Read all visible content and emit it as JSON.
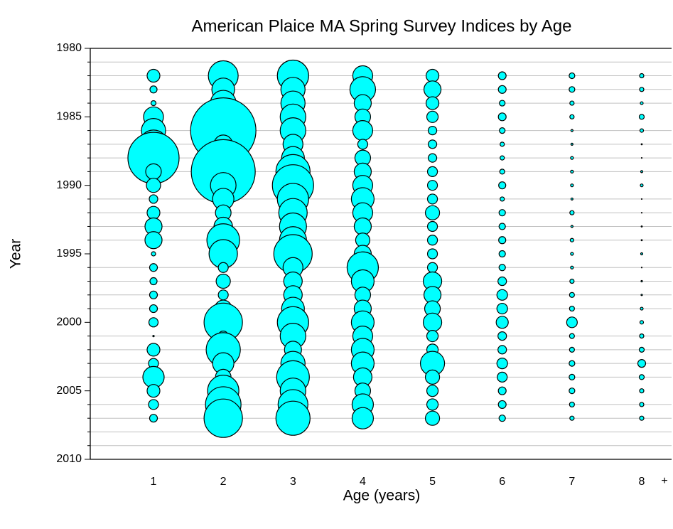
{
  "chart_data": {
    "type": "bubble",
    "title": "American Plaice MA Spring Survey Indices by Age",
    "xlabel": "Age (years)",
    "ylabel": "Year",
    "annotation": "+",
    "categories": [
      "1",
      "2",
      "3",
      "4",
      "5",
      "6",
      "7",
      "8"
    ],
    "years": [
      1982,
      1983,
      1984,
      1985,
      1986,
      1987,
      1988,
      1989,
      1990,
      1991,
      1992,
      1993,
      1994,
      1995,
      1996,
      1997,
      1998,
      1999,
      2000,
      2001,
      2002,
      2003,
      2004,
      2005,
      2006,
      2007
    ],
    "ylim": [
      1980,
      2010
    ],
    "y_inverted": true,
    "yticks": [
      1980,
      1985,
      1990,
      1995,
      2000,
      2005,
      2010
    ],
    "minor_yticks": [
      1981,
      1982,
      1983,
      1984,
      1986,
      1987,
      1988,
      1989,
      1991,
      1992,
      1993,
      1994,
      1996,
      1997,
      1998,
      1999,
      2001,
      2002,
      2003,
      2004,
      2006,
      2007,
      2008,
      2009
    ],
    "grid": true,
    "color": "#00ffff",
    "series": [
      {
        "name": "1",
        "values": [
          9,
          5,
          3.5,
          14,
          17,
          20,
          36,
          11,
          10,
          6,
          9,
          12,
          12,
          3,
          5.5,
          5,
          5.5,
          5.5,
          6.5,
          1,
          9,
          7,
          15,
          9,
          7,
          5.5
        ]
      },
      {
        "name": "2",
        "values": [
          21,
          16,
          18,
          22,
          46,
          13,
          16,
          45,
          18,
          15,
          11,
          13,
          23,
          20,
          7,
          10,
          7,
          12,
          27,
          7,
          24,
          15,
          11,
          22,
          25,
          27
        ]
      },
      {
        "name": "3",
        "values": [
          22,
          17,
          17,
          18,
          18,
          14,
          16,
          24,
          29,
          22,
          20,
          19,
          19,
          27,
          14,
          13,
          13,
          16,
          22,
          18,
          12,
          17,
          23,
          18,
          21,
          24
        ]
      },
      {
        "name": "4",
        "values": [
          14,
          18,
          12,
          11,
          14,
          7,
          11,
          12,
          14,
          16,
          14,
          12,
          10,
          12,
          22,
          16,
          11,
          12,
          16,
          14,
          16,
          16,
          13,
          11,
          15,
          15
        ]
      },
      {
        "name": "5",
        "values": [
          9,
          12,
          9,
          8,
          6,
          6,
          6,
          7,
          7,
          7,
          10,
          7,
          7,
          7,
          7,
          13,
          12,
          11,
          13,
          8,
          8,
          17,
          10,
          8,
          8,
          10
        ]
      },
      {
        "name": "6",
        "values": [
          5.5,
          5.5,
          4,
          5.5,
          4,
          3,
          3,
          3.5,
          5,
          3,
          4.5,
          4.5,
          5,
          4.5,
          4.5,
          6,
          7.5,
          7.5,
          8.5,
          6,
          6,
          7.5,
          7,
          5.5,
          5.5,
          4.5
        ]
      },
      {
        "name": "7",
        "values": [
          4,
          4,
          3,
          3,
          1.5,
          1.5,
          2,
          2,
          2,
          1.5,
          3,
          1.5,
          2.5,
          2,
          2,
          3,
          3.5,
          3.5,
          7.5,
          3.5,
          3.5,
          4,
          4,
          4,
          3.5,
          3
        ]
      },
      {
        "name": "8",
        "values": [
          3,
          3,
          2,
          3.5,
          2.5,
          0.8,
          0.5,
          1.5,
          2,
          0.5,
          0.5,
          0.8,
          0.8,
          1.5,
          0.5,
          1,
          1,
          2,
          2.5,
          3,
          3.5,
          5.5,
          3.5,
          3,
          3,
          3
        ]
      }
    ]
  }
}
